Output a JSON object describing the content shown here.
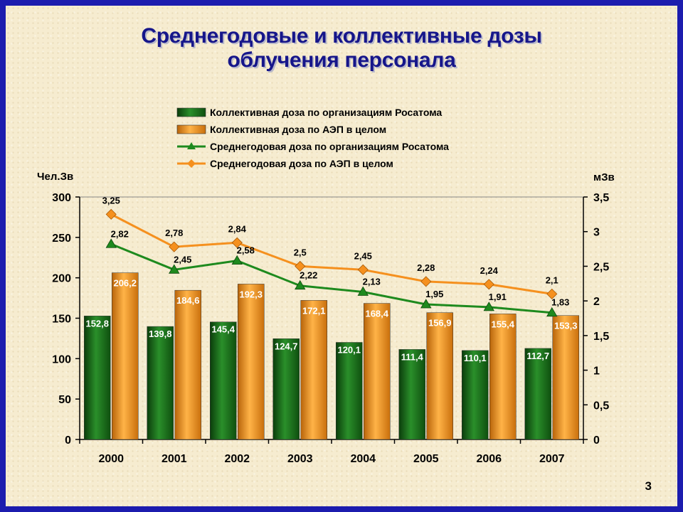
{
  "title_line1": "Среднегодовые и коллективные дозы",
  "title_line2": "облучения персонала",
  "page_number": "3",
  "chart_data": {
    "type": "bar",
    "categories": [
      "2000",
      "2001",
      "2002",
      "2003",
      "2004",
      "2005",
      "2006",
      "2007"
    ],
    "y_left_label": "Чел.Зв",
    "y_right_label": "мЗв",
    "y_left_lim": [
      0,
      300
    ],
    "y_left_ticks": [
      "0",
      "50",
      "100",
      "150",
      "200",
      "250",
      "300"
    ],
    "y_right_lim": [
      0,
      3.5
    ],
    "y_right_ticks": [
      "0",
      "0,5",
      "1",
      "1,5",
      "2",
      "2,5",
      "3",
      "3,5"
    ],
    "legend_position": "top",
    "grid": false,
    "bar_series": [
      {
        "name": "Коллективная доза по организациям Росатома",
        "color": "#1e7a1e",
        "values": [
          152.8,
          139.8,
          145.4,
          124.7,
          120.1,
          111.4,
          110.1,
          112.7
        ],
        "labels": [
          "152,8",
          "139,8",
          "145,4",
          "124,7",
          "120,1",
          "111,4",
          "110,1",
          "112,7"
        ]
      },
      {
        "name": "Коллективная доза по АЭП в целом",
        "color": "#f29a1e",
        "values": [
          206.2,
          184.6,
          192.3,
          172.1,
          168.4,
          156.9,
          155.4,
          153.3
        ],
        "labels": [
          "206,2",
          "184,6",
          "192,3",
          "172,1",
          "168,4",
          "156,9",
          "155,4",
          "153,3"
        ]
      }
    ],
    "line_series": [
      {
        "name": "Среднегодовая доза по организациям Росатома",
        "color": "#1e8a1e",
        "marker": "triangle",
        "axis": "right",
        "values": [
          2.82,
          2.45,
          2.58,
          2.22,
          2.13,
          1.95,
          1.91,
          1.83
        ],
        "labels": [
          "2,82",
          "2,45",
          "2,58",
          "2,22",
          "2,13",
          "1,95",
          "1,91",
          "1,83"
        ]
      },
      {
        "name": "Среднегодовая доза по  АЭП в целом",
        "color": "#f5901e",
        "marker": "diamond",
        "axis": "right",
        "values": [
          3.25,
          2.78,
          2.84,
          2.5,
          2.45,
          2.28,
          2.24,
          2.1
        ],
        "labels": [
          "3,25",
          "2,78",
          "2,84",
          "2,5",
          "2,45",
          "2,28",
          "2,24",
          "2,1"
        ]
      }
    ]
  }
}
